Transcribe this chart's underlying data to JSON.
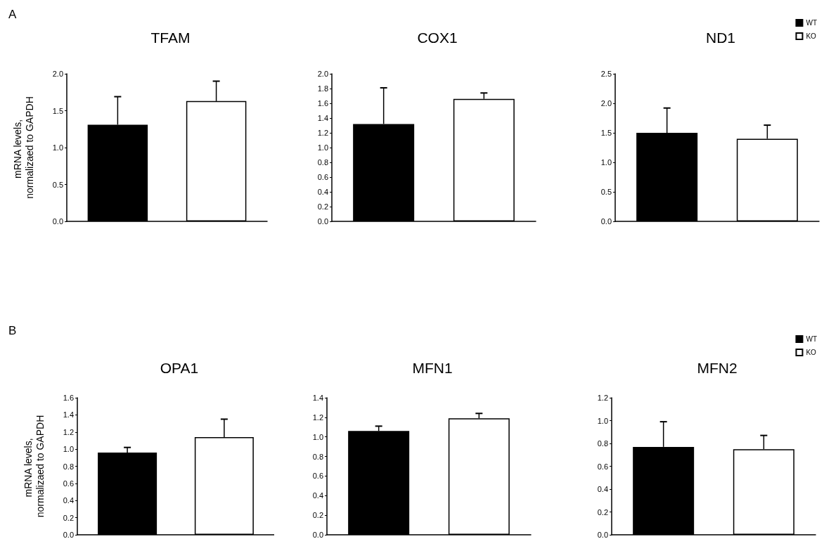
{
  "chart_data": [
    {
      "type": "bar",
      "title": "TFAM",
      "ylabel": "mRNA levels, normalizaed to GAPDH",
      "annotations": [
        "A"
      ],
      "categories": [
        null
      ],
      "tick_labels": "y",
      "legend": false,
      "series": [
        {
          "color": "#000000",
          "values": [
            1.31
          ],
          "errors": [
            [
              1.31,
              1.69
            ]
          ]
        },
        {
          "color": "#ffffff",
          "values": [
            1.63
          ],
          "errors": [
            [
              1.63,
              1.9
            ]
          ]
        }
      ],
      "ylim": [
        0,
        2
      ],
      "yticks": [
        {
          "value": 0,
          "label": "0.0"
        },
        0.5,
        {
          "value": 1,
          "label": "1.0"
        },
        1.5,
        {
          "value": 2,
          "label": "2.0"
        }
      ]
    },
    {
      "type": "bar",
      "title": "COX1",
      "categories": [
        null
      ],
      "tick_labels": "y",
      "legend": false,
      "series": [
        {
          "color": "#000000",
          "values": [
            1.32
          ],
          "errors": [
            [
              1.32,
              1.81
            ]
          ]
        },
        {
          "color": "#ffffff",
          "values": [
            1.66
          ],
          "errors": [
            [
              1.66,
              1.74
            ]
          ]
        }
      ],
      "ylim": [
        0,
        2
      ],
      "yticks": [
        {
          "value": 0,
          "label": "0.0"
        },
        0.2,
        0.4,
        0.6,
        0.8,
        {
          "value": 1,
          "label": "1.0"
        },
        1.2,
        1.4,
        1.6,
        1.8,
        {
          "value": 2,
          "label": "2.0"
        }
      ]
    },
    {
      "type": "bar",
      "title": "ND1",
      "categories": [
        null
      ],
      "tick_labels": "y",
      "legend": "top right",
      "series": [
        {
          "name": "WT",
          "color": "#000000",
          "values": [
            1.5
          ],
          "errors": [
            [
              1.5,
              1.92
            ]
          ]
        },
        {
          "name": "KO",
          "color": "#ffffff",
          "values": [
            1.4
          ],
          "errors": [
            [
              1.4,
              1.63
            ]
          ]
        }
      ],
      "ylim": [
        0,
        2.5
      ],
      "yticks": [
        {
          "value": 0,
          "label": "0.0"
        },
        0.5,
        {
          "value": 1,
          "label": "1.0"
        },
        1.5,
        {
          "value": 2,
          "label": "2.0"
        },
        2.5
      ]
    },
    {
      "type": "bar",
      "title": "OPA1",
      "ylabel": "mRNA levels, normalizaed to GAPDH",
      "annotations": [
        "B"
      ],
      "categories": [
        null
      ],
      "tick_labels": "y",
      "legend": false,
      "series": [
        {
          "color": "#000000",
          "values": [
            0.96
          ],
          "errors": [
            [
              0.96,
              1.02
            ]
          ]
        },
        {
          "color": "#ffffff",
          "values": [
            1.14
          ],
          "errors": [
            [
              1.14,
              1.35
            ]
          ]
        }
      ],
      "ylim": [
        0,
        1.6
      ],
      "yticks": [
        {
          "value": 0,
          "label": "0.0"
        },
        0.2,
        0.4,
        0.6,
        0.8,
        {
          "value": 1,
          "label": "1.0"
        },
        1.2,
        1.4,
        1.6
      ]
    },
    {
      "type": "bar",
      "title": "MFN1",
      "categories": [
        null
      ],
      "tick_labels": "y",
      "legend": false,
      "series": [
        {
          "color": "#000000",
          "values": [
            1.06
          ],
          "errors": [
            [
              1.06,
              1.11
            ]
          ]
        },
        {
          "color": "#ffffff",
          "values": [
            1.19
          ],
          "errors": [
            [
              1.19,
              1.24
            ]
          ]
        }
      ],
      "ylim": [
        0,
        1.4
      ],
      "yticks": [
        {
          "value": 0,
          "label": "0.0"
        },
        0.2,
        0.4,
        0.6,
        0.8,
        {
          "value": 1,
          "label": "1.0"
        },
        1.2,
        1.4
      ]
    },
    {
      "type": "bar",
      "title": "MFN2",
      "categories": [
        null
      ],
      "tick_labels": "y",
      "legend": "top right",
      "series": [
        {
          "name": "WT",
          "color": "#000000",
          "values": [
            0.77
          ],
          "errors": [
            [
              0.77,
              0.99
            ]
          ]
        },
        {
          "name": "KO",
          "color": "#ffffff",
          "values": [
            0.75
          ],
          "errors": [
            [
              0.75,
              0.87
            ]
          ]
        }
      ],
      "ylim": [
        0,
        1.2
      ],
      "yticks": [
        {
          "value": 0,
          "label": "0.0"
        },
        0.2,
        0.4,
        0.6,
        0.8,
        {
          "value": 1,
          "label": "1.0"
        },
        1.2
      ]
    }
  ]
}
